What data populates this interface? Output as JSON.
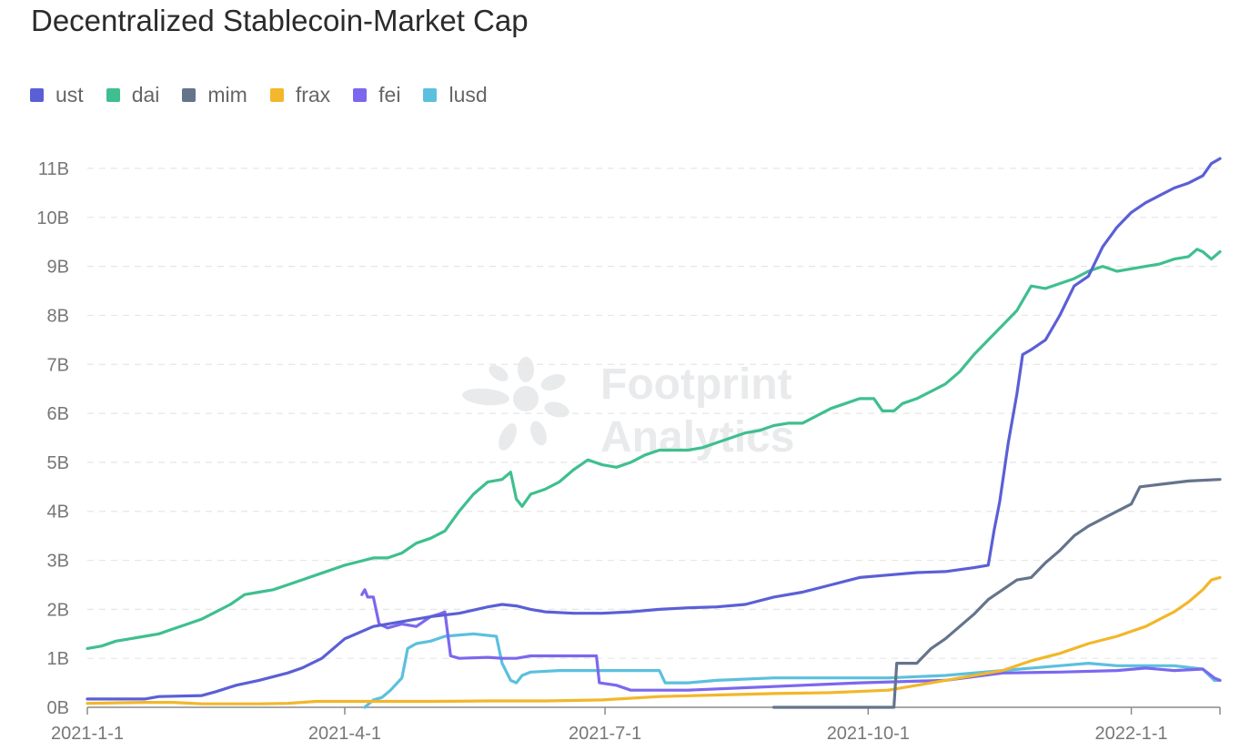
{
  "chart_data": {
    "type": "line",
    "title": "Decentralized Stablecoin-Market Cap",
    "xlabel": "",
    "ylabel": "",
    "x_ticks": [
      "2021-1-1",
      "2021-4-1",
      "2021-7-1",
      "2021-10-1",
      "2022-1-1"
    ],
    "y_ticks": [
      "0B",
      "1B",
      "2B",
      "3B",
      "4B",
      "5B",
      "6B",
      "7B",
      "8B",
      "9B",
      "10B",
      "11B"
    ],
    "ylim": [
      0,
      11
    ],
    "x_unit": "days since 2021-01-01",
    "xlim": [
      0,
      396
    ],
    "grid": true,
    "legend_position": "top-left",
    "series": [
      {
        "name": "ust",
        "color": "#5b5fd6",
        "points": [
          [
            0,
            0.17
          ],
          [
            20,
            0.17
          ],
          [
            25,
            0.22
          ],
          [
            40,
            0.24
          ],
          [
            45,
            0.32
          ],
          [
            52,
            0.45
          ],
          [
            60,
            0.55
          ],
          [
            70,
            0.7
          ],
          [
            75,
            0.8
          ],
          [
            82,
            1.0
          ],
          [
            90,
            1.4
          ],
          [
            100,
            1.65
          ],
          [
            110,
            1.75
          ],
          [
            120,
            1.85
          ],
          [
            130,
            1.92
          ],
          [
            140,
            2.05
          ],
          [
            145,
            2.1
          ],
          [
            150,
            2.07
          ],
          [
            155,
            2.0
          ],
          [
            160,
            1.95
          ],
          [
            170,
            1.92
          ],
          [
            180,
            1.92
          ],
          [
            190,
            1.95
          ],
          [
            200,
            2.0
          ],
          [
            210,
            2.03
          ],
          [
            220,
            2.05
          ],
          [
            230,
            2.1
          ],
          [
            240,
            2.25
          ],
          [
            250,
            2.35
          ],
          [
            260,
            2.5
          ],
          [
            270,
            2.65
          ],
          [
            280,
            2.7
          ],
          [
            290,
            2.75
          ],
          [
            300,
            2.77
          ],
          [
            310,
            2.85
          ],
          [
            315,
            2.9
          ],
          [
            317,
            3.6
          ],
          [
            319,
            4.2
          ],
          [
            322,
            5.4
          ],
          [
            325,
            6.4
          ],
          [
            327,
            7.2
          ],
          [
            330,
            7.3
          ],
          [
            335,
            7.5
          ],
          [
            340,
            8.0
          ],
          [
            345,
            8.6
          ],
          [
            350,
            8.8
          ],
          [
            355,
            9.4
          ],
          [
            360,
            9.8
          ],
          [
            365,
            10.1
          ],
          [
            370,
            10.3
          ],
          [
            375,
            10.45
          ],
          [
            380,
            10.6
          ],
          [
            385,
            10.7
          ],
          [
            390,
            10.85
          ],
          [
            393,
            11.1
          ],
          [
            396,
            11.2
          ]
        ]
      },
      {
        "name": "dai",
        "color": "#3fbf8f",
        "points": [
          [
            0,
            1.2
          ],
          [
            5,
            1.25
          ],
          [
            10,
            1.35
          ],
          [
            15,
            1.4
          ],
          [
            20,
            1.45
          ],
          [
            25,
            1.5
          ],
          [
            30,
            1.6
          ],
          [
            40,
            1.8
          ],
          [
            45,
            1.95
          ],
          [
            50,
            2.1
          ],
          [
            55,
            2.3
          ],
          [
            60,
            2.35
          ],
          [
            65,
            2.4
          ],
          [
            70,
            2.5
          ],
          [
            75,
            2.6
          ],
          [
            80,
            2.7
          ],
          [
            90,
            2.9
          ],
          [
            100,
            3.05
          ],
          [
            105,
            3.05
          ],
          [
            110,
            3.15
          ],
          [
            115,
            3.35
          ],
          [
            120,
            3.45
          ],
          [
            125,
            3.6
          ],
          [
            130,
            4.0
          ],
          [
            135,
            4.35
          ],
          [
            140,
            4.6
          ],
          [
            145,
            4.65
          ],
          [
            148,
            4.8
          ],
          [
            150,
            4.25
          ],
          [
            152,
            4.1
          ],
          [
            155,
            4.35
          ],
          [
            160,
            4.45
          ],
          [
            165,
            4.6
          ],
          [
            170,
            4.85
          ],
          [
            175,
            5.05
          ],
          [
            180,
            4.95
          ],
          [
            185,
            4.9
          ],
          [
            190,
            5.0
          ],
          [
            195,
            5.15
          ],
          [
            200,
            5.25
          ],
          [
            205,
            5.25
          ],
          [
            210,
            5.25
          ],
          [
            215,
            5.3
          ],
          [
            220,
            5.4
          ],
          [
            225,
            5.5
          ],
          [
            230,
            5.6
          ],
          [
            235,
            5.65
          ],
          [
            240,
            5.75
          ],
          [
            245,
            5.8
          ],
          [
            250,
            5.8
          ],
          [
            255,
            5.95
          ],
          [
            260,
            6.1
          ],
          [
            265,
            6.2
          ],
          [
            270,
            6.3
          ],
          [
            275,
            6.3
          ],
          [
            278,
            6.05
          ],
          [
            282,
            6.05
          ],
          [
            285,
            6.2
          ],
          [
            290,
            6.3
          ],
          [
            295,
            6.45
          ],
          [
            300,
            6.6
          ],
          [
            305,
            6.85
          ],
          [
            310,
            7.2
          ],
          [
            315,
            7.5
          ],
          [
            320,
            7.8
          ],
          [
            325,
            8.1
          ],
          [
            330,
            8.6
          ],
          [
            335,
            8.55
          ],
          [
            340,
            8.65
          ],
          [
            345,
            8.75
          ],
          [
            350,
            8.9
          ],
          [
            355,
            9.0
          ],
          [
            360,
            8.9
          ],
          [
            365,
            8.95
          ],
          [
            370,
            9.0
          ],
          [
            375,
            9.05
          ],
          [
            380,
            9.15
          ],
          [
            385,
            9.2
          ],
          [
            388,
            9.35
          ],
          [
            390,
            9.3
          ],
          [
            393,
            9.15
          ],
          [
            396,
            9.3
          ]
        ]
      },
      {
        "name": "mim",
        "color": "#64748b",
        "points": [
          [
            240,
            0
          ],
          [
            276,
            0
          ],
          [
            282,
            0
          ],
          [
            283,
            0.9
          ],
          [
            290,
            0.9
          ],
          [
            295,
            1.2
          ],
          [
            300,
            1.4
          ],
          [
            305,
            1.65
          ],
          [
            310,
            1.9
          ],
          [
            315,
            2.2
          ],
          [
            320,
            2.4
          ],
          [
            325,
            2.6
          ],
          [
            330,
            2.65
          ],
          [
            335,
            2.95
          ],
          [
            340,
            3.2
          ],
          [
            345,
            3.5
          ],
          [
            350,
            3.7
          ],
          [
            355,
            3.85
          ],
          [
            360,
            4.0
          ],
          [
            365,
            4.15
          ],
          [
            368,
            4.5
          ],
          [
            375,
            4.55
          ],
          [
            385,
            4.62
          ],
          [
            396,
            4.65
          ]
        ]
      },
      {
        "name": "frax",
        "color": "#f2b72a",
        "points": [
          [
            0,
            0.08
          ],
          [
            20,
            0.1
          ],
          [
            30,
            0.1
          ],
          [
            40,
            0.07
          ],
          [
            60,
            0.07
          ],
          [
            70,
            0.08
          ],
          [
            80,
            0.12
          ],
          [
            100,
            0.12
          ],
          [
            120,
            0.12
          ],
          [
            140,
            0.13
          ],
          [
            160,
            0.13
          ],
          [
            180,
            0.15
          ],
          [
            200,
            0.22
          ],
          [
            220,
            0.25
          ],
          [
            240,
            0.28
          ],
          [
            260,
            0.3
          ],
          [
            280,
            0.35
          ],
          [
            300,
            0.55
          ],
          [
            320,
            0.75
          ],
          [
            330,
            0.95
          ],
          [
            340,
            1.1
          ],
          [
            350,
            1.3
          ],
          [
            360,
            1.45
          ],
          [
            370,
            1.65
          ],
          [
            375,
            1.8
          ],
          [
            380,
            1.95
          ],
          [
            385,
            2.15
          ],
          [
            390,
            2.4
          ],
          [
            393,
            2.6
          ],
          [
            396,
            2.65
          ]
        ]
      },
      {
        "name": "fei",
        "color": "#7b68ee",
        "points": [
          [
            96,
            2.3
          ],
          [
            97,
            2.4
          ],
          [
            98,
            2.25
          ],
          [
            100,
            2.25
          ],
          [
            102,
            1.7
          ],
          [
            105,
            1.62
          ],
          [
            110,
            1.7
          ],
          [
            115,
            1.65
          ],
          [
            120,
            1.85
          ],
          [
            123,
            1.9
          ],
          [
            125,
            1.95
          ],
          [
            127,
            1.05
          ],
          [
            130,
            1.0
          ],
          [
            140,
            1.02
          ],
          [
            145,
            1.0
          ],
          [
            150,
            1.0
          ],
          [
            155,
            1.05
          ],
          [
            170,
            1.05
          ],
          [
            178,
            1.05
          ],
          [
            179,
            0.5
          ],
          [
            185,
            0.45
          ],
          [
            190,
            0.35
          ],
          [
            210,
            0.35
          ],
          [
            230,
            0.4
          ],
          [
            250,
            0.45
          ],
          [
            270,
            0.5
          ],
          [
            300,
            0.55
          ],
          [
            320,
            0.7
          ],
          [
            340,
            0.72
          ],
          [
            360,
            0.75
          ],
          [
            370,
            0.8
          ],
          [
            380,
            0.75
          ],
          [
            390,
            0.78
          ],
          [
            394,
            0.6
          ],
          [
            396,
            0.55
          ]
        ]
      },
      {
        "name": "lusd",
        "color": "#5bc0de",
        "points": [
          [
            97,
            0
          ],
          [
            100,
            0.15
          ],
          [
            103,
            0.2
          ],
          [
            106,
            0.35
          ],
          [
            110,
            0.6
          ],
          [
            112,
            1.2
          ],
          [
            115,
            1.3
          ],
          [
            120,
            1.35
          ],
          [
            125,
            1.45
          ],
          [
            135,
            1.5
          ],
          [
            143,
            1.45
          ],
          [
            145,
            0.9
          ],
          [
            148,
            0.55
          ],
          [
            150,
            0.5
          ],
          [
            152,
            0.65
          ],
          [
            155,
            0.72
          ],
          [
            165,
            0.75
          ],
          [
            180,
            0.75
          ],
          [
            190,
            0.75
          ],
          [
            200,
            0.75
          ],
          [
            202,
            0.5
          ],
          [
            210,
            0.5
          ],
          [
            220,
            0.55
          ],
          [
            240,
            0.6
          ],
          [
            260,
            0.6
          ],
          [
            280,
            0.6
          ],
          [
            300,
            0.65
          ],
          [
            320,
            0.75
          ],
          [
            340,
            0.85
          ],
          [
            350,
            0.9
          ],
          [
            360,
            0.85
          ],
          [
            370,
            0.85
          ],
          [
            380,
            0.85
          ],
          [
            390,
            0.78
          ],
          [
            394,
            0.55
          ],
          [
            396,
            0.55
          ]
        ]
      }
    ]
  },
  "watermark": {
    "line1": "Footprint",
    "line2": "Analytics"
  }
}
